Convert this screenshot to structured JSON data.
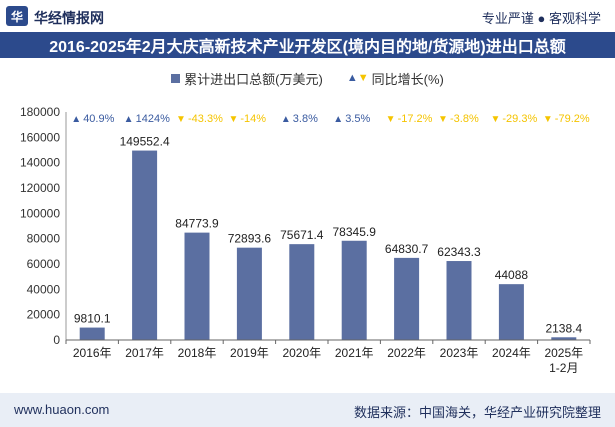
{
  "header": {
    "logo_glyph": "华",
    "brand": "华经情报网",
    "slogan": "专业严谨 ● 客观科学"
  },
  "title": "2016-2025年2月大庆高新技术产业开发区(境内目的地/货源地)进出口总额",
  "legend": {
    "bar_label": "累计进出口总额(万美元)",
    "growth_label": "同比增长(%)"
  },
  "footer": {
    "website": "www.huaon.com",
    "source": "数据来源：中国海关，华经产业研究院整理"
  },
  "colors": {
    "bar": "#5b6fa1",
    "up": "#3a5ba0",
    "down": "#f5c400",
    "title_bg": "#2c4a8c"
  },
  "chart_data": {
    "type": "bar",
    "title": "2016-2025年2月大庆高新技术产业开发区(境内目的地/货源地)进出口总额",
    "categories": [
      "2016年",
      "2017年",
      "2018年",
      "2019年",
      "2020年",
      "2021年",
      "2022年",
      "2023年",
      "2024年",
      "2025年\n1-2月"
    ],
    "series": [
      {
        "name": "累计进出口总额(万美元)",
        "values": [
          9810.1,
          149552.4,
          84773.9,
          72893.6,
          75671.4,
          78345.9,
          64830.7,
          62343.3,
          44088,
          2138.4
        ],
        "labels": [
          "9810.1",
          "149552.4",
          "84773.9",
          "72893.6",
          "75671.4",
          "78345.9",
          "64830.7",
          "62343.3",
          "44088",
          "2138.4"
        ]
      },
      {
        "name": "同比增长(%)",
        "values": [
          40.9,
          1424,
          -43.3,
          -14,
          3.8,
          3.5,
          -17.2,
          -3.8,
          -29.3,
          -79.2
        ],
        "labels": [
          "40.9%",
          "1424%",
          "-43.3%",
          "-14%",
          "3.8%",
          "3.5%",
          "-17.2%",
          "-3.8%",
          "-29.3%",
          "-79.2%"
        ]
      }
    ],
    "yticks": [
      "0",
      "20000",
      "40000",
      "60000",
      "80000",
      "100000",
      "120000",
      "140000",
      "160000",
      "180000"
    ],
    "ylim": [
      0,
      180000
    ],
    "xlabel": "",
    "ylabel": ""
  }
}
